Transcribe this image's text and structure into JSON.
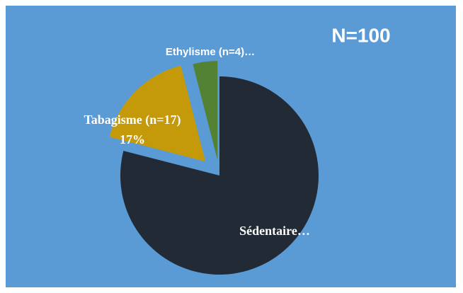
{
  "chart_data": {
    "type": "pie",
    "title": "N=100",
    "categories": [
      "Sédentaire…",
      "Tabagisme (n=17)",
      "Ethylisme (n=4)…"
    ],
    "values": [
      79,
      17,
      4
    ],
    "value_labels": [
      null,
      "17%",
      null
    ],
    "colors": [
      "#222a35",
      "#c49a0a",
      "#548235"
    ]
  }
}
